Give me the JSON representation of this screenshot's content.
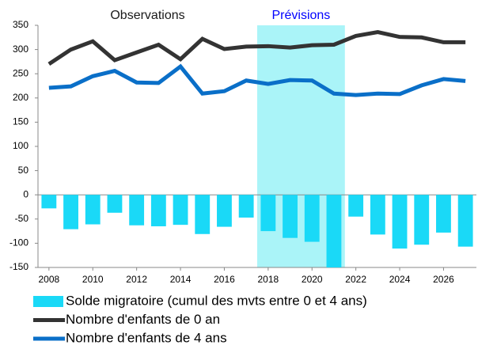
{
  "chart_data": {
    "type": "combo",
    "annotations": [
      {
        "text": "Observations",
        "x": 2012.5,
        "color": "#1a1a1a"
      }
    ],
    "shaded_region": {
      "label": "Prévisions",
      "xlim": [
        2017.5,
        2021.5
      ],
      "color": "#aaf4f8",
      "label_color": "#0000ff"
    },
    "x": [
      2008,
      2009,
      2010,
      2011,
      2012,
      2013,
      2014,
      2015,
      2016,
      2017,
      2018,
      2019,
      2020,
      2021,
      2022,
      2023,
      2024,
      2025,
      2026,
      2027
    ],
    "xlim": [
      2007.5,
      2027.5
    ],
    "xticks": [
      2008,
      2010,
      2012,
      2014,
      2016,
      2018,
      2020,
      2022,
      2024,
      2026
    ],
    "ylim": [
      -150,
      350
    ],
    "yticks": [
      350,
      300,
      250,
      200,
      150,
      100,
      50,
      0,
      -50,
      -100,
      -150
    ],
    "grid": false,
    "series": [
      {
        "name": "Solde migratoire (cumul des mvts entre 0 et 4 ans)",
        "type": "bar",
        "color": "#1ad9f7",
        "values": [
          -28,
          -71,
          -61,
          -37,
          -63,
          -65,
          -62,
          -81,
          -66,
          -47,
          -75,
          -89,
          -97,
          -150,
          -45,
          -82,
          -111,
          -103,
          -78,
          -107
        ]
      },
      {
        "name": "Nombre d'enfants de 0 an",
        "type": "line",
        "color": "#333333",
        "values": [
          270,
          300,
          317,
          278,
          294,
          310,
          280,
          322,
          301,
          306,
          307,
          304,
          309,
          310,
          328,
          336,
          326,
          325,
          315,
          315
        ]
      },
      {
        "name": "Nombre d'enfants de 4 ans",
        "type": "line",
        "color": "#0a6fc8",
        "values": [
          221,
          224,
          245,
          256,
          232,
          231,
          265,
          209,
          214,
          236,
          229,
          237,
          236,
          209,
          206,
          209,
          208,
          226,
          239,
          235
        ]
      }
    ]
  }
}
